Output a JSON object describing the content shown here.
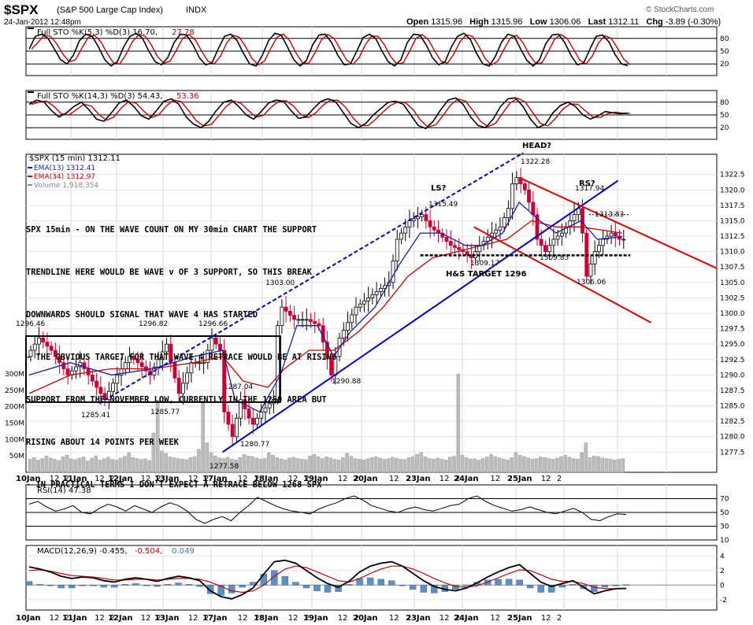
{
  "header": {
    "symbol": "$SPX",
    "name": "(S&P 500 Large Cap Index)",
    "exchange": "INDX",
    "datetime": "24-Jan-2012 12:48pm",
    "watermark": "© StockCharts.com",
    "open_label": "Open",
    "open": "1315.96",
    "high_label": "High",
    "high": "1315.96",
    "low_label": "Low",
    "low": "1306.06",
    "last_label": "Last",
    "last": "1312.11",
    "chg_label": "Chg",
    "chg": "-3.89 (-0.30%)"
  },
  "chart_data": [
    {
      "type": "line",
      "panel": "stochastic-fast",
      "legend": [
        "Full STO %K(5,3) %D(3) 16.70,",
        "27.78"
      ],
      "series": [
        {
          "name": "%K",
          "color": "#000000"
        },
        {
          "name": "%D",
          "color": "#cc0000"
        }
      ],
      "ylim": [
        0,
        100
      ],
      "y_ticks": [
        20,
        50,
        80
      ],
      "values": [
        55,
        85,
        90,
        80,
        55,
        30,
        20,
        40,
        75,
        90,
        85,
        60,
        30,
        15,
        25,
        60,
        85,
        92,
        80,
        50,
        25,
        18,
        35,
        70,
        90,
        88,
        65,
        35,
        18,
        22,
        55,
        85,
        90,
        75,
        45,
        20,
        15,
        40,
        75,
        92,
        88,
        60,
        30,
        15,
        28,
        65,
        88,
        90,
        70,
        40,
        18,
        20,
        50,
        82,
        90,
        80,
        50,
        25,
        15,
        30,
        70,
        90,
        88,
        65,
        35,
        18,
        25,
        60,
        85,
        92,
        78,
        45,
        20,
        15,
        38,
        72,
        90,
        85,
        55,
        28,
        15,
        30,
        68,
        88,
        90,
        70,
        40,
        18,
        22,
        55,
        85,
        88,
        72,
        42,
        20,
        16
      ]
    },
    {
      "type": "line",
      "panel": "stochastic-slow",
      "legend": [
        "Full STO %K(14,3) %D(3) 54.43,",
        "53.36"
      ],
      "series": [
        {
          "name": "%K",
          "color": "#000000"
        },
        {
          "name": "%D",
          "color": "#cc0000"
        }
      ],
      "ylim": [
        0,
        100
      ],
      "y_ticks": [
        20,
        50,
        80
      ],
      "values": [
        75,
        85,
        80,
        60,
        45,
        55,
        70,
        80,
        62,
        40,
        35,
        55,
        78,
        85,
        70,
        48,
        40,
        60,
        82,
        88,
        75,
        45,
        28,
        20,
        35,
        60,
        80,
        85,
        70,
        50,
        40,
        58,
        78,
        85,
        82,
        60,
        42,
        45,
        65,
        82,
        88,
        80,
        55,
        30,
        20,
        30,
        50,
        65,
        80,
        82,
        75,
        50,
        25,
        18,
        35,
        62,
        85,
        90,
        75,
        45,
        25,
        20,
        40,
        70,
        88,
        90,
        70,
        40,
        20,
        28,
        55,
        72,
        80,
        70,
        50,
        40,
        48,
        58,
        55,
        53,
        54
      ]
    },
    {
      "type": "candlestick",
      "panel": "price",
      "title": "$SPX (15 min) 1312.11",
      "legend": [
        {
          "name": "EMA(13)",
          "value": "1312.41",
          "color": "#1a1aaa"
        },
        {
          "name": "EMA(34)",
          "value": "1312.97",
          "color": "#cc0000"
        },
        {
          "name": "Volume",
          "value": "1,918,354",
          "color": "#888888"
        }
      ],
      "ylim": [
        1275.5,
        1324.5
      ],
      "y_ticks": [
        "1322.5",
        "1320.0",
        "1317.5",
        "1315.0",
        "1312.5",
        "1310.0",
        "1307.5",
        "1305.0",
        "1302.5",
        "1300.0",
        "1297.5",
        "1295.0",
        "1292.5",
        "1290.0",
        "1287.5",
        "1285.0",
        "1282.5",
        "1280.0",
        "1277.5"
      ],
      "volume_ticks": [
        "300M",
        "250M",
        "200M",
        "150M",
        "100M",
        "50M"
      ],
      "volume_ylim": [
        0,
        360
      ],
      "x_labels": [
        "10Jan",
        "12",
        "2",
        "11Jan",
        "12",
        "2",
        "12Jan",
        "12",
        "2",
        "13Jan",
        "12",
        "2",
        "17Jan",
        "12",
        "2",
        "18Jan",
        "12",
        "2",
        "19Jan",
        "12",
        "2",
        "20Jan",
        "12",
        "2",
        "23Jan",
        "12",
        "2",
        "24Jan",
        "12",
        "2",
        "25Jan",
        "12",
        "2"
      ],
      "close_path": [
        [
          0,
          1293
        ],
        [
          3,
          1296
        ],
        [
          6,
          1294
        ],
        [
          10,
          1290
        ],
        [
          13,
          1292
        ],
        [
          17,
          1288
        ],
        [
          19,
          1286
        ],
        [
          22,
          1290
        ],
        [
          25,
          1293
        ],
        [
          27,
          1292
        ],
        [
          30,
          1290
        ],
        [
          34,
          1295
        ],
        [
          35,
          1292
        ],
        [
          37,
          1287
        ],
        [
          40,
          1292
        ],
        [
          43,
          1292
        ],
        [
          45,
          1296
        ],
        [
          47,
          1294
        ],
        [
          48,
          1284
        ],
        [
          50,
          1280
        ],
        [
          52,
          1286
        ],
        [
          54,
          1283
        ],
        [
          55,
          1282
        ],
        [
          57,
          1284
        ],
        [
          60,
          1286
        ],
        [
          61,
          1298
        ],
        [
          62,
          1301
        ],
        [
          65,
          1299
        ],
        [
          68,
          1299
        ],
        [
          71,
          1298
        ],
        [
          74,
          1290
        ],
        [
          76,
          1296
        ],
        [
          80,
          1301
        ],
        [
          84,
          1303
        ],
        [
          88,
          1305
        ],
        [
          90,
          1312
        ],
        [
          93,
          1315
        ],
        [
          96,
          1316
        ],
        [
          98,
          1314
        ],
        [
          100,
          1313
        ],
        [
          103,
          1311
        ],
        [
          106,
          1310
        ],
        [
          108,
          1309
        ],
        [
          110,
          1311
        ],
        [
          113,
          1313
        ],
        [
          115,
          1314
        ],
        [
          117,
          1317
        ],
        [
          118,
          1321
        ],
        [
          119,
          1322
        ],
        [
          121,
          1320
        ],
        [
          123,
          1316
        ],
        [
          124,
          1312
        ],
        [
          126,
          1310
        ],
        [
          128,
          1312
        ],
        [
          130,
          1313
        ],
        [
          132,
          1315
        ],
        [
          134,
          1317
        ],
        [
          135,
          1313
        ],
        [
          136,
          1306
        ],
        [
          137,
          1308
        ],
        [
          138,
          1310
        ],
        [
          140,
          1312
        ],
        [
          142,
          1313
        ],
        [
          144,
          1312
        ]
      ],
      "ema13": [
        [
          0,
          1290
        ],
        [
          10,
          1292
        ],
        [
          20,
          1290
        ],
        [
          30,
          1291
        ],
        [
          40,
          1293
        ],
        [
          47,
          1294
        ],
        [
          50,
          1286
        ],
        [
          56,
          1284
        ],
        [
          61,
          1290
        ],
        [
          65,
          1298
        ],
        [
          70,
          1298
        ],
        [
          74,
          1293
        ],
        [
          78,
          1297
        ],
        [
          84,
          1301
        ],
        [
          90,
          1308
        ],
        [
          95,
          1313
        ],
        [
          100,
          1313
        ],
        [
          106,
          1311
        ],
        [
          110,
          1311
        ],
        [
          115,
          1313
        ],
        [
          119,
          1318
        ],
        [
          124,
          1315
        ],
        [
          128,
          1313
        ],
        [
          134,
          1315
        ],
        [
          138,
          1312
        ],
        [
          144,
          1312.4
        ]
      ],
      "ema34": [
        [
          0,
          1287
        ],
        [
          10,
          1290
        ],
        [
          20,
          1291
        ],
        [
          30,
          1291
        ],
        [
          40,
          1292
        ],
        [
          47,
          1293
        ],
        [
          52,
          1289
        ],
        [
          58,
          1288
        ],
        [
          62,
          1291
        ],
        [
          68,
          1294
        ],
        [
          74,
          1294
        ],
        [
          80,
          1297
        ],
        [
          86,
          1301
        ],
        [
          92,
          1306
        ],
        [
          98,
          1309
        ],
        [
          104,
          1310
        ],
        [
          110,
          1311
        ],
        [
          116,
          1312
        ],
        [
          122,
          1315
        ],
        [
          128,
          1314
        ],
        [
          134,
          1314
        ],
        [
          144,
          1313
        ]
      ],
      "volume": [
        40,
        45,
        38,
        42,
        50,
        44,
        40,
        36,
        48,
        52,
        41,
        39,
        44,
        47,
        35,
        43,
        50,
        38,
        42,
        46,
        40,
        37,
        44,
        49,
        60,
        45,
        42,
        39,
        41,
        36,
        120,
        220,
        65,
        58,
        47,
        44,
        42,
        40,
        39,
        45,
        48,
        70,
        215,
        90,
        60,
        50,
        44,
        42,
        46,
        40,
        38,
        45,
        55,
        50,
        48,
        44,
        40,
        42,
        60,
        52,
        45,
        41,
        38,
        44,
        46,
        42,
        40,
        39,
        50,
        55,
        48,
        42,
        47,
        44,
        40,
        38,
        45,
        58,
        49,
        42,
        40,
        38,
        41,
        45,
        48,
        44,
        40,
        42,
        46,
        43,
        40,
        39,
        45,
        48,
        55,
        60,
        47,
        42,
        41,
        44,
        40,
        38,
        46,
        49,
        300,
        52,
        45,
        40,
        41,
        38,
        42,
        47,
        55,
        48,
        44,
        40,
        38,
        45,
        60,
        52,
        48,
        44,
        40,
        42,
        47,
        45,
        42,
        40,
        44,
        48,
        52,
        46,
        42,
        40,
        60,
        90,
        45,
        50,
        48,
        44,
        42,
        40,
        38,
        40,
        42
      ],
      "price_labels": [
        "1296.46",
        "1296.82",
        "1296.66",
        "1285.41",
        "1285.77",
        "1287.04",
        "1277.58",
        "1280.77",
        "1303.00",
        "1290.88",
        "1315.49",
        "1309.17",
        "1322.28",
        "1309.83",
        "1317.94",
        "1313.83",
        "1306.06"
      ],
      "pattern_labels": [
        "LS?",
        "HEAD?",
        "RS?",
        "H&S TARGET 1296"
      ],
      "annotation": [
        "SPX 15min - ON THE WAVE COUNT ON MY 30min CHART THE SUPPORT",
        "TRENDLINE HERE WOULD BE WAVE v OF 3 SUPPORT, SO THIS BREAK",
        "DOWNWARDS SHOULD SIGNAL THAT WAVE 4 HAS STARTED",
        "- THE OBVIOUS TARGET FOR THAT WAVE 4 RETRACE WOULD BE AT RISING",
        "SUPPORT FROM THE NOVEMBER LOW, CURRENTLY IN THE 1260 AREA BUT",
        "RISING ABOUT 14 POINTS PER WEEK",
        "- IN PRACTICAL TERMS I DON'T EXPECT A RETRACE BELOW 1268 SPX"
      ],
      "grid": true
    },
    {
      "type": "line",
      "panel": "rsi",
      "legend": [
        "RSI(14) 47.38"
      ],
      "series": [
        {
          "name": "RSI",
          "color": "#000000"
        }
      ],
      "ylim": [
        10,
        90
      ],
      "y_ticks": [
        70,
        50,
        30,
        10
      ],
      "x_labels": [
        "10Jan",
        "12",
        "2",
        "11Jan",
        "12",
        "2",
        "12Jan",
        "12",
        "2",
        "13Jan",
        "12",
        "2",
        "17Jan",
        "12",
        "2",
        "18Jan",
        "12",
        "2",
        "19Jan",
        "12",
        "2",
        "20Jan",
        "12",
        "2",
        "23Jan",
        "12",
        "2",
        "24Jan",
        "12",
        "2",
        "25Jan",
        "12",
        "2"
      ],
      "values": [
        62,
        66,
        58,
        52,
        55,
        60,
        50,
        48,
        56,
        62,
        58,
        52,
        60,
        55,
        50,
        58,
        64,
        60,
        52,
        40,
        34,
        40,
        44,
        38,
        50,
        60,
        72,
        66,
        60,
        55,
        52,
        50,
        48,
        55,
        60,
        64,
        70,
        74,
        68,
        60,
        56,
        52,
        50,
        55,
        58,
        54,
        52,
        56,
        60,
        62,
        70,
        74,
        66,
        60,
        56,
        52,
        54,
        58,
        54,
        50,
        48,
        52,
        56,
        50,
        40,
        38,
        44,
        48,
        47
      ]
    },
    {
      "type": "bar",
      "panel": "macd",
      "legend": [
        "MACD(12,26,9) -0.455,",
        "-0.504,",
        "0.049"
      ],
      "series": [
        {
          "name": "MACD",
          "color": "#000000"
        },
        {
          "name": "Signal",
          "color": "#cc0000"
        },
        {
          "name": "Histogram",
          "color": "#4477aa"
        }
      ],
      "ylim": [
        -3,
        5
      ],
      "y_ticks": [
        4,
        2,
        0,
        -2
      ],
      "x_labels": [
        "10Jan",
        "12",
        "2",
        "11Jan",
        "12",
        "2",
        "12Jan",
        "12",
        "2",
        "13Jan",
        "12",
        "2",
        "17Jan",
        "12",
        "2",
        "18Jan",
        "12",
        "2",
        "19Jan",
        "12",
        "2",
        "20Jan",
        "12",
        "2",
        "23Jan",
        "12",
        "2",
        "24Jan",
        "12",
        "2",
        "25Jan",
        "12",
        "2"
      ],
      "macd": [
        2.5,
        2.2,
        1.8,
        1.2,
        0.9,
        1.1,
        1.0,
        0.6,
        0.4,
        0.8,
        1.0,
        0.8,
        0.5,
        0.9,
        1.2,
        1.0,
        0.6,
        -0.8,
        -1.6,
        -1.9,
        -1.3,
        -0.4,
        1.5,
        3.2,
        3.4,
        3.0,
        2.0,
        1.0,
        0.2,
        -0.3,
        0.5,
        1.8,
        2.6,
        3.0,
        3.2,
        2.6,
        1.6,
        0.6,
        -0.2,
        -0.6,
        -0.8,
        -0.4,
        0.3,
        1.1,
        1.8,
        2.4,
        2.8,
        1.6,
        0.4,
        -0.2,
        0.2,
        0.6,
        -0.3,
        -1.2,
        -0.8,
        -0.5,
        -0.46
      ],
      "signal": [
        2.0,
        2.1,
        1.9,
        1.6,
        1.3,
        1.2,
        1.1,
        0.9,
        0.7,
        0.7,
        0.8,
        0.8,
        0.7,
        0.8,
        0.9,
        0.9,
        0.8,
        0.4,
        -0.2,
        -0.8,
        -1.0,
        -0.8,
        0.0,
        1.2,
        2.2,
        2.6,
        2.4,
        1.8,
        1.2,
        0.6,
        0.4,
        0.9,
        1.6,
        2.2,
        2.6,
        2.6,
        2.2,
        1.6,
        0.9,
        0.3,
        -0.2,
        -0.3,
        -0.1,
        0.4,
        1.0,
        1.6,
        2.1,
        2.0,
        1.4,
        0.8,
        0.5,
        0.5,
        0.2,
        -0.3,
        -0.5,
        -0.5,
        -0.5
      ],
      "hist": [
        0.5,
        0.1,
        -0.1,
        -0.4,
        -0.4,
        -0.1,
        -0.1,
        -0.3,
        -0.3,
        0.1,
        0.2,
        0.0,
        -0.2,
        0.1,
        0.3,
        0.1,
        -0.2,
        -1.2,
        -1.4,
        -1.1,
        -0.3,
        0.4,
        1.5,
        2.0,
        1.2,
        0.4,
        -0.4,
        -0.8,
        -1.0,
        -0.9,
        0.1,
        0.9,
        1.0,
        0.8,
        0.6,
        0.0,
        -0.6,
        -1.0,
        -1.1,
        -0.9,
        -0.6,
        -0.1,
        0.4,
        0.7,
        0.8,
        0.8,
        0.7,
        -0.4,
        -1.0,
        -1.0,
        -0.3,
        0.1,
        -0.5,
        -0.9,
        -0.3,
        0.0,
        0.05
      ]
    }
  ]
}
